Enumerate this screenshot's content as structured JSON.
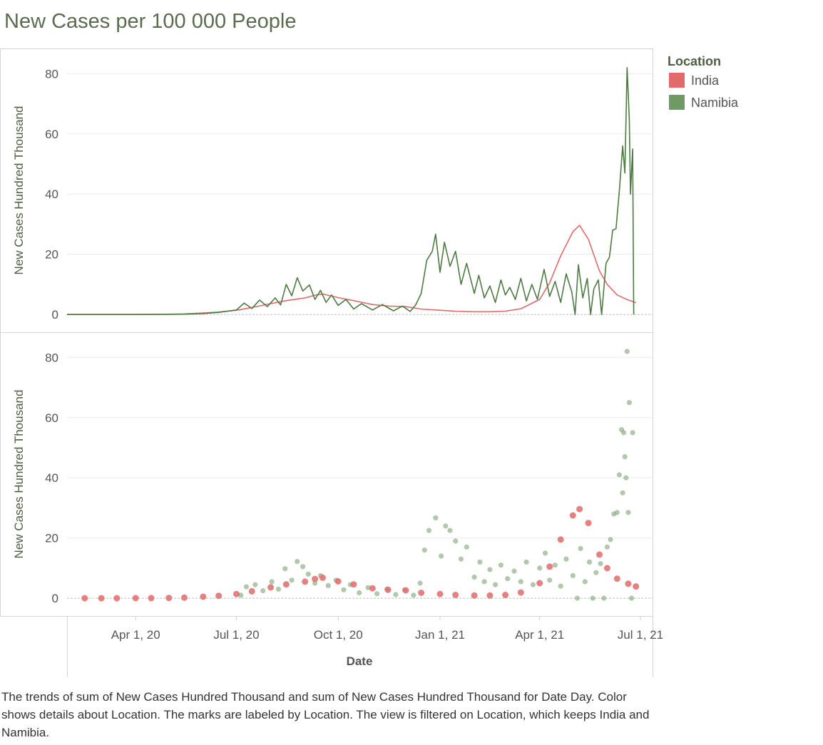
{
  "page": {
    "title": "New Cases per 100 000 People",
    "caption": "The trends of sum of New Cases Hundred Thousand and sum of New Cases Hundred Thousand for Date Day.  Color shows details about Location.  The marks are labeled by Location. The view is filtered on Location, which keeps India and Namibia."
  },
  "legend": {
    "title": "Location",
    "items": [
      {
        "name": "India",
        "color": "#e06b6b"
      },
      {
        "name": "Namibia",
        "color": "#6f9a64"
      }
    ]
  },
  "chart_data": [
    {
      "type": "line",
      "title": "",
      "xlabel": "",
      "ylabel": "New Cases Hundred Thousand",
      "x_range": [
        "2020-01-30",
        "2021-07-12"
      ],
      "ylim": [
        -4,
        86
      ],
      "y_ticks": [
        0,
        20,
        40,
        60,
        80
      ],
      "grid": true,
      "series": [
        {
          "name": "India",
          "color": "#e06b6b",
          "points": [
            [
              "2020-01-30",
              0
            ],
            [
              "2020-04-01",
              0.02
            ],
            [
              "2020-05-01",
              0.1
            ],
            [
              "2020-05-15",
              0.2
            ],
            [
              "2020-06-01",
              0.5
            ],
            [
              "2020-06-15",
              0.8
            ],
            [
              "2020-07-01",
              1.4
            ],
            [
              "2020-07-15",
              2.3
            ],
            [
              "2020-08-01",
              3.6
            ],
            [
              "2020-08-15",
              4.6
            ],
            [
              "2020-09-01",
              5.5
            ],
            [
              "2020-09-10",
              6.4
            ],
            [
              "2020-09-17",
              6.8
            ],
            [
              "2020-10-01",
              5.6
            ],
            [
              "2020-10-15",
              4.6
            ],
            [
              "2020-11-01",
              3.3
            ],
            [
              "2020-11-15",
              2.8
            ],
            [
              "2020-12-01",
              2.6
            ],
            [
              "2020-12-15",
              1.8
            ],
            [
              "2021-01-01",
              1.4
            ],
            [
              "2021-01-15",
              1.1
            ],
            [
              "2021-02-01",
              0.9
            ],
            [
              "2021-02-15",
              0.9
            ],
            [
              "2021-03-01",
              1.1
            ],
            [
              "2021-03-15",
              1.9
            ],
            [
              "2021-04-01",
              5.0
            ],
            [
              "2021-04-10",
              10.5
            ],
            [
              "2021-04-20",
              19.5
            ],
            [
              "2021-05-01",
              27.5
            ],
            [
              "2021-05-07",
              29.6
            ],
            [
              "2021-05-15",
              25.0
            ],
            [
              "2021-05-25",
              14.5
            ],
            [
              "2021-06-01",
              10.0
            ],
            [
              "2021-06-10",
              6.5
            ],
            [
              "2021-06-20",
              4.8
            ],
            [
              "2021-06-27",
              3.9
            ]
          ]
        },
        {
          "name": "Namibia",
          "color": "#4e7a43",
          "points": [
            [
              "2020-01-30",
              0
            ],
            [
              "2020-04-01",
              0
            ],
            [
              "2020-05-01",
              0.05
            ],
            [
              "2020-05-15",
              0.1
            ],
            [
              "2020-06-01",
              0.3
            ],
            [
              "2020-06-15",
              0.7
            ],
            [
              "2020-07-01",
              1.5
            ],
            [
              "2020-07-08",
              3.8
            ],
            [
              "2020-07-15",
              2.0
            ],
            [
              "2020-07-22",
              4.8
            ],
            [
              "2020-07-29",
              2.6
            ],
            [
              "2020-08-05",
              5.5
            ],
            [
              "2020-08-10",
              3.2
            ],
            [
              "2020-08-15",
              10.0
            ],
            [
              "2020-08-20",
              6.2
            ],
            [
              "2020-08-25",
              12.2
            ],
            [
              "2020-08-30",
              7.8
            ],
            [
              "2020-09-05",
              9.8
            ],
            [
              "2020-09-10",
              5.0
            ],
            [
              "2020-09-15",
              8.0
            ],
            [
              "2020-09-20",
              4.0
            ],
            [
              "2020-09-25",
              6.5
            ],
            [
              "2020-10-01",
              3.0
            ],
            [
              "2020-10-08",
              5.0
            ],
            [
              "2020-10-15",
              1.8
            ],
            [
              "2020-10-22",
              3.6
            ],
            [
              "2020-11-01",
              1.5
            ],
            [
              "2020-11-10",
              3.3
            ],
            [
              "2020-11-20",
              1.2
            ],
            [
              "2020-11-28",
              2.8
            ],
            [
              "2020-12-05",
              1.0
            ],
            [
              "2020-12-10",
              3.2
            ],
            [
              "2020-12-15",
              7.0
            ],
            [
              "2020-12-20",
              18.0
            ],
            [
              "2020-12-25",
              21.0
            ],
            [
              "2020-12-28",
              26.7
            ],
            [
              "2021-01-01",
              14.0
            ],
            [
              "2021-01-05",
              24.0
            ],
            [
              "2021-01-10",
              16.0
            ],
            [
              "2021-01-15",
              21.0
            ],
            [
              "2021-01-20",
              10.0
            ],
            [
              "2021-01-25",
              17.0
            ],
            [
              "2021-02-01",
              7.0
            ],
            [
              "2021-02-05",
              13.0
            ],
            [
              "2021-02-10",
              5.5
            ],
            [
              "2021-02-15",
              9.5
            ],
            [
              "2021-02-20",
              4.0
            ],
            [
              "2021-02-25",
              11.5
            ],
            [
              "2021-03-01",
              6.5
            ],
            [
              "2021-03-05",
              9.0
            ],
            [
              "2021-03-10",
              5.0
            ],
            [
              "2021-03-15",
              12.0
            ],
            [
              "2021-03-20",
              4.5
            ],
            [
              "2021-03-25",
              10.0
            ],
            [
              "2021-03-30",
              5.0
            ],
            [
              "2021-04-05",
              15.0
            ],
            [
              "2021-04-10",
              6.0
            ],
            [
              "2021-04-15",
              11.0
            ],
            [
              "2021-04-20",
              4.0
            ],
            [
              "2021-04-25",
              13.5
            ],
            [
              "2021-04-30",
              7.5
            ],
            [
              "2021-05-03",
              0
            ],
            [
              "2021-05-06",
              16.5
            ],
            [
              "2021-05-10",
              5.5
            ],
            [
              "2021-05-14",
              12.0
            ],
            [
              "2021-05-17",
              0
            ],
            [
              "2021-05-20",
              8.5
            ],
            [
              "2021-05-24",
              11.5
            ],
            [
              "2021-05-27",
              0
            ],
            [
              "2021-05-31",
              17.0
            ],
            [
              "2021-06-03",
              19.0
            ],
            [
              "2021-06-06",
              28.0
            ],
            [
              "2021-06-09",
              28.5
            ],
            [
              "2021-06-12",
              41.0
            ],
            [
              "2021-06-15",
              56.0
            ],
            [
              "2021-06-17",
              47.0
            ],
            [
              "2021-06-19",
              82.0
            ],
            [
              "2021-06-21",
              65.0
            ],
            [
              "2021-06-22",
              40.0
            ],
            [
              "2021-06-24",
              55.0
            ],
            [
              "2021-06-25",
              0
            ]
          ]
        }
      ]
    },
    {
      "type": "scatter",
      "title": "",
      "xlabel": "Date",
      "ylabel": "New Cases Hundred Thousand",
      "x_range": [
        "2020-01-30",
        "2021-07-12"
      ],
      "ylim": [
        -4,
        86
      ],
      "y_ticks": [
        0,
        20,
        40,
        60,
        80
      ],
      "x_ticks": [
        "Apr 1, 20",
        "Jul 1, 20",
        "Oct 1, 20",
        "Jan 1, 21",
        "Apr 1, 21",
        "Jul 1, 21"
      ],
      "x_tick_dates": [
        "2020-04-01",
        "2020-07-01",
        "2020-10-01",
        "2021-01-01",
        "2021-04-01",
        "2021-07-01"
      ],
      "grid": true,
      "series": [
        {
          "name": "India",
          "color": "#e06b6b",
          "points": [
            [
              "2020-02-15",
              0
            ],
            [
              "2020-03-01",
              0
            ],
            [
              "2020-03-15",
              0
            ],
            [
              "2020-04-01",
              0.02
            ],
            [
              "2020-04-15",
              0.05
            ],
            [
              "2020-05-01",
              0.1
            ],
            [
              "2020-05-15",
              0.2
            ],
            [
              "2020-06-01",
              0.5
            ],
            [
              "2020-06-15",
              0.8
            ],
            [
              "2020-07-01",
              1.4
            ],
            [
              "2020-07-15",
              2.3
            ],
            [
              "2020-08-01",
              3.6
            ],
            [
              "2020-08-15",
              4.6
            ],
            [
              "2020-09-01",
              5.5
            ],
            [
              "2020-09-10",
              6.4
            ],
            [
              "2020-09-17",
              6.8
            ],
            [
              "2020-10-01",
              5.6
            ],
            [
              "2020-10-15",
              4.6
            ],
            [
              "2020-11-01",
              3.3
            ],
            [
              "2020-11-15",
              2.8
            ],
            [
              "2020-12-01",
              2.6
            ],
            [
              "2020-12-15",
              1.8
            ],
            [
              "2021-01-01",
              1.4
            ],
            [
              "2021-01-15",
              1.1
            ],
            [
              "2021-02-01",
              0.9
            ],
            [
              "2021-02-15",
              0.9
            ],
            [
              "2021-03-01",
              1.1
            ],
            [
              "2021-03-15",
              1.9
            ],
            [
              "2021-04-01",
              5.0
            ],
            [
              "2021-04-10",
              10.5
            ],
            [
              "2021-04-20",
              19.5
            ],
            [
              "2021-05-01",
              27.5
            ],
            [
              "2021-05-07",
              29.6
            ],
            [
              "2021-05-15",
              25.0
            ],
            [
              "2021-05-25",
              14.5
            ],
            [
              "2021-06-01",
              10.0
            ],
            [
              "2021-06-10",
              6.5
            ],
            [
              "2021-06-20",
              4.8
            ],
            [
              "2021-06-27",
              3.9
            ]
          ]
        },
        {
          "name": "Namibia",
          "color": "#7ea374",
          "points": [
            [
              "2020-07-05",
              1.0
            ],
            [
              "2020-07-10",
              3.8
            ],
            [
              "2020-07-18",
              4.5
            ],
            [
              "2020-07-25",
              2.5
            ],
            [
              "2020-08-02",
              5.5
            ],
            [
              "2020-08-08",
              3.0
            ],
            [
              "2020-08-14",
              9.8
            ],
            [
              "2020-08-20",
              6.0
            ],
            [
              "2020-08-25",
              12.2
            ],
            [
              "2020-08-30",
              10.5
            ],
            [
              "2020-09-04",
              8.0
            ],
            [
              "2020-09-10",
              5.0
            ],
            [
              "2020-09-15",
              7.5
            ],
            [
              "2020-09-22",
              4.2
            ],
            [
              "2020-09-29",
              6.0
            ],
            [
              "2020-10-06",
              2.8
            ],
            [
              "2020-10-12",
              4.5
            ],
            [
              "2020-10-20",
              1.8
            ],
            [
              "2020-10-28",
              3.5
            ],
            [
              "2020-11-05",
              1.5
            ],
            [
              "2020-11-14",
              3.0
            ],
            [
              "2020-11-22",
              1.2
            ],
            [
              "2020-11-30",
              2.8
            ],
            [
              "2020-12-08",
              1.0
            ],
            [
              "2020-12-14",
              5.0
            ],
            [
              "2020-12-18",
              16.0
            ],
            [
              "2020-12-22",
              22.5
            ],
            [
              "2020-12-28",
              26.7
            ],
            [
              "2021-01-02",
              14.0
            ],
            [
              "2021-01-06",
              24.0
            ],
            [
              "2021-01-10",
              22.5
            ],
            [
              "2021-01-15",
              19.0
            ],
            [
              "2021-01-20",
              13.0
            ],
            [
              "2021-01-25",
              17.0
            ],
            [
              "2021-02-01",
              7.0
            ],
            [
              "2021-02-06",
              12.0
            ],
            [
              "2021-02-10",
              5.5
            ],
            [
              "2021-02-15",
              9.5
            ],
            [
              "2021-02-20",
              4.5
            ],
            [
              "2021-02-25",
              11.0
            ],
            [
              "2021-03-03",
              6.5
            ],
            [
              "2021-03-09",
              9.0
            ],
            [
              "2021-03-15",
              5.5
            ],
            [
              "2021-03-20",
              12.0
            ],
            [
              "2021-03-26",
              4.5
            ],
            [
              "2021-04-01",
              10.0
            ],
            [
              "2021-04-06",
              15.0
            ],
            [
              "2021-04-10",
              6.0
            ],
            [
              "2021-04-15",
              11.0
            ],
            [
              "2021-04-20",
              4.0
            ],
            [
              "2021-04-25",
              13.0
            ],
            [
              "2021-05-01",
              7.5
            ],
            [
              "2021-05-05",
              0
            ],
            [
              "2021-05-08",
              16.5
            ],
            [
              "2021-05-12",
              5.5
            ],
            [
              "2021-05-16",
              12.0
            ],
            [
              "2021-05-19",
              0
            ],
            [
              "2021-05-22",
              8.5
            ],
            [
              "2021-05-26",
              11.5
            ],
            [
              "2021-05-29",
              0
            ],
            [
              "2021-06-01",
              17.0
            ],
            [
              "2021-06-04",
              19.5
            ],
            [
              "2021-06-07",
              28.0
            ],
            [
              "2021-06-10",
              28.5
            ],
            [
              "2021-06-12",
              41.0
            ],
            [
              "2021-06-14",
              56.0
            ],
            [
              "2021-06-15",
              35.0
            ],
            [
              "2021-06-16",
              55.0
            ],
            [
              "2021-06-17",
              47.0
            ],
            [
              "2021-06-18",
              40.0
            ],
            [
              "2021-06-19",
              82.0
            ],
            [
              "2021-06-20",
              28.5
            ],
            [
              "2021-06-21",
              65.0
            ],
            [
              "2021-06-23",
              0
            ],
            [
              "2021-06-24",
              55.0
            ]
          ]
        }
      ]
    }
  ]
}
